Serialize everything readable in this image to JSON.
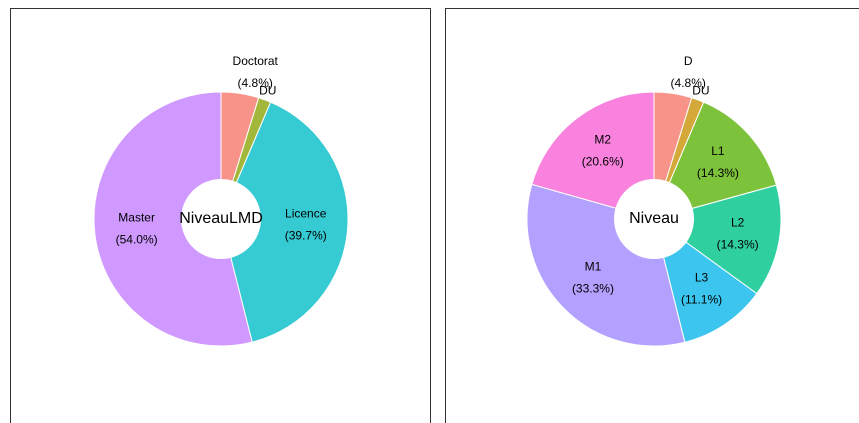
{
  "chart_data": [
    {
      "type": "donut",
      "center_label": "NiveauLMD",
      "categories": [
        "Doctorat",
        "DU",
        "Licence",
        "Master"
      ],
      "values": [
        4.8,
        1.6,
        39.7,
        54.0
      ],
      "value_labels": [
        "(4.8%)",
        null,
        "(39.7%)",
        "(54.0%)"
      ],
      "colors": [
        "#F8938A",
        "#A3B83A",
        "#36CBD3",
        "#CF99FF"
      ]
    },
    {
      "type": "donut",
      "center_label": "Niveau",
      "categories": [
        "D",
        "DU",
        "L1",
        "L2",
        "L3",
        "M1",
        "M2"
      ],
      "values": [
        4.8,
        1.6,
        14.3,
        14.3,
        11.1,
        33.3,
        20.6
      ],
      "value_labels": [
        "(4.8%)",
        null,
        "(14.3%)",
        "(14.3%)",
        "(11.1%)",
        "(33.3%)",
        "(20.6%)"
      ],
      "colors": [
        "#F8938A",
        "#D4A93A",
        "#7CC23A",
        "#30CFA0",
        "#3CC5EE",
        "#B3A1FF",
        "#F982DE"
      ]
    }
  ]
}
